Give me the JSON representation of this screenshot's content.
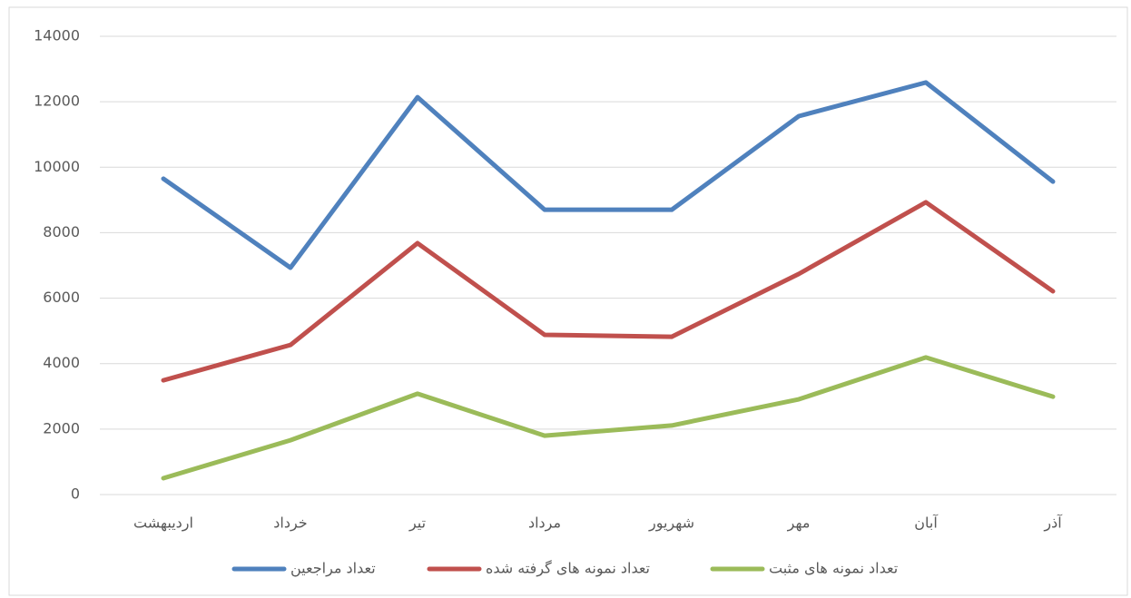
{
  "chart_data": {
    "type": "line",
    "categories": [
      "اردیبهشت",
      "خرداد",
      "تیر",
      "مرداد",
      "شهریور",
      "مهر",
      "آبان",
      "آذر"
    ],
    "series": [
      {
        "name": "تعداد مراجعین",
        "color": "#4f81bd",
        "values": [
          9650,
          6930,
          12140,
          8700,
          8700,
          11560,
          12590,
          9560
        ]
      },
      {
        "name": "تعداد نمونه های گرفته شده",
        "color": "#c0504d",
        "values": [
          3490,
          4570,
          7680,
          4880,
          4820,
          6740,
          8930,
          6210
        ]
      },
      {
        "name": "تعداد نمونه های مثبت",
        "color": "#9bbb59",
        "values": [
          500,
          1660,
          3080,
          1800,
          2110,
          2910,
          4190,
          2990
        ]
      }
    ],
    "ylim": [
      0,
      14000
    ],
    "yticks": [
      0,
      2000,
      4000,
      6000,
      8000,
      10000,
      12000,
      14000
    ],
    "grid": true,
    "legend": "bottom"
  }
}
